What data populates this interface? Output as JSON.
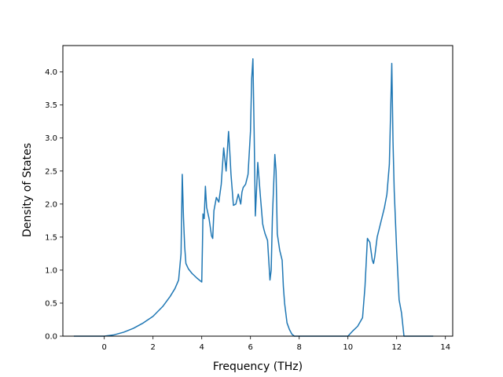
{
  "chart_data": {
    "type": "line",
    "title": "",
    "xlabel": "Frequency (THz)",
    "ylabel": "Density of States",
    "xlim": [
      -1.7,
      14.3
    ],
    "ylim": [
      0.0,
      4.4
    ],
    "xticks": [
      0,
      2,
      4,
      6,
      8,
      10,
      12,
      14
    ],
    "yticks": [
      0.0,
      0.5,
      1.0,
      1.5,
      2.0,
      2.5,
      3.0,
      3.5,
      4.0
    ],
    "xtick_labels": [
      "0",
      "2",
      "4",
      "6",
      "8",
      "10",
      "12",
      "14"
    ],
    "ytick_labels": [
      "0.0",
      "0.5",
      "1.0",
      "1.5",
      "2.0",
      "2.5",
      "3.0",
      "3.5",
      "4.0"
    ],
    "grid": false,
    "line_color": "#1f77b4",
    "series": [
      {
        "x": [
          -1.25,
          -0.8,
          -0.4,
          0.0,
          0.4,
          0.8,
          1.2,
          1.6,
          2.0,
          2.4,
          2.7,
          2.9,
          3.05,
          3.15,
          3.2,
          3.25,
          3.3,
          3.35,
          3.45,
          3.6,
          3.8,
          4.0,
          4.03,
          4.05,
          4.1,
          4.15,
          4.2,
          4.3,
          4.4,
          4.45,
          4.5,
          4.6,
          4.7,
          4.8,
          4.9,
          5.0,
          5.1,
          5.15,
          5.2,
          5.3,
          5.4,
          5.5,
          5.6,
          5.65,
          5.7,
          5.8,
          5.9,
          6.0,
          6.05,
          6.1,
          6.15,
          6.2,
          6.3,
          6.4,
          6.5,
          6.55,
          6.6,
          6.7,
          6.8,
          6.85,
          6.9,
          7.0,
          7.05,
          7.1,
          7.2,
          7.3,
          7.35,
          7.4,
          7.5,
          7.6,
          7.7,
          7.8,
          8.0,
          9.0,
          10.0,
          10.2,
          10.4,
          10.6,
          10.7,
          10.8,
          10.9,
          11.0,
          11.05,
          11.1,
          11.2,
          11.3,
          11.4,
          11.5,
          11.6,
          11.7,
          11.8,
          11.85,
          11.9,
          12.0,
          12.1,
          12.2,
          12.3,
          12.5,
          13.0,
          13.5
        ],
        "y": [
          0.0,
          0.0,
          0.0,
          0.0,
          0.02,
          0.06,
          0.12,
          0.2,
          0.3,
          0.45,
          0.6,
          0.72,
          0.85,
          1.25,
          2.45,
          1.8,
          1.35,
          1.1,
          1.02,
          0.95,
          0.88,
          0.82,
          1.4,
          1.85,
          1.78,
          2.27,
          1.95,
          1.78,
          1.52,
          1.48,
          1.9,
          2.1,
          2.03,
          2.3,
          2.85,
          2.5,
          3.1,
          2.8,
          2.45,
          1.98,
          2.0,
          2.15,
          2.0,
          2.18,
          2.25,
          2.3,
          2.45,
          3.1,
          3.9,
          4.2,
          3.1,
          1.82,
          2.63,
          2.15,
          1.7,
          1.62,
          1.55,
          1.45,
          0.85,
          1.0,
          1.8,
          2.75,
          2.5,
          1.55,
          1.3,
          1.15,
          0.75,
          0.5,
          0.2,
          0.1,
          0.03,
          0.0,
          0.0,
          0.0,
          0.0,
          0.08,
          0.15,
          0.28,
          0.75,
          1.48,
          1.42,
          1.15,
          1.1,
          1.2,
          1.5,
          1.65,
          1.8,
          1.95,
          2.15,
          2.6,
          4.13,
          2.95,
          2.2,
          1.3,
          0.55,
          0.35,
          0.0,
          0.0,
          0.0,
          0.0
        ]
      }
    ]
  }
}
